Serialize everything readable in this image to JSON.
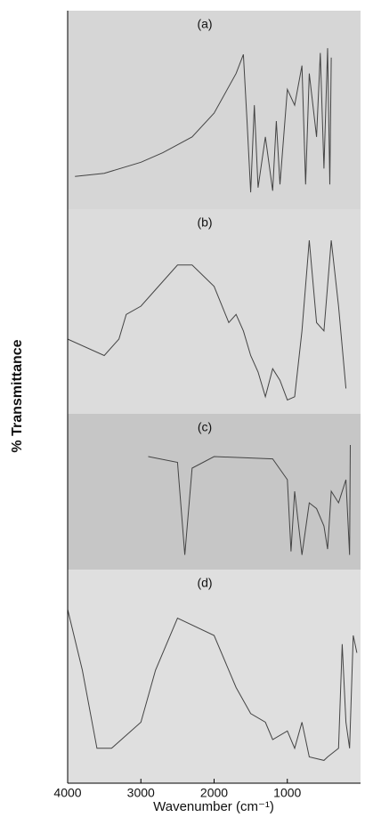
{
  "chart_data": {
    "type": "line",
    "ylabel": "% Transmittance",
    "xlabel": "Wavenumber (cm⁻¹)",
    "xlim": [
      4000,
      0
    ],
    "xticks": [
      4000,
      3000,
      2000,
      1000
    ],
    "color": "#444444",
    "panels": [
      {
        "label": "(a)",
        "background": "#d6d6d6",
        "ylim": [
          0,
          100
        ],
        "x": [
          3900,
          3500,
          3000,
          2700,
          2500,
          2300,
          2000,
          1700,
          1600,
          1550,
          1500,
          1450,
          1400,
          1300,
          1200,
          1150,
          1100,
          1000,
          900,
          800,
          750,
          700,
          600,
          550,
          500,
          450,
          420,
          400
        ],
        "values": [
          15,
          17,
          24,
          30,
          35,
          40,
          55,
          80,
          92,
          50,
          5,
          60,
          8,
          40,
          6,
          50,
          10,
          70,
          60,
          85,
          10,
          80,
          40,
          93,
          20,
          96,
          10,
          90
        ]
      },
      {
        "label": "(b)",
        "background": "#dcdcdc",
        "ylim": [
          0,
          100
        ],
        "x": [
          4000,
          3500,
          3300,
          3200,
          3000,
          2800,
          2500,
          2300,
          2000,
          1800,
          1700,
          1600,
          1500,
          1400,
          1300,
          1200,
          1100,
          1000,
          900,
          800,
          700,
          600,
          500,
          400,
          300,
          200
        ],
        "values": [
          40,
          30,
          40,
          55,
          60,
          70,
          85,
          85,
          72,
          50,
          55,
          45,
          30,
          20,
          5,
          22,
          15,
          3,
          5,
          45,
          100,
          50,
          45,
          100,
          60,
          10
        ]
      },
      {
        "label": "(c)",
        "background": "#c6c6c6",
        "ylim": [
          0,
          100
        ],
        "x": [
          2900,
          2500,
          2400,
          2300,
          2000,
          1200,
          1000,
          950,
          900,
          800,
          700,
          600,
          500,
          450,
          400,
          300,
          200,
          150,
          140
        ],
        "values": [
          90,
          85,
          5,
          80,
          90,
          88,
          70,
          8,
          60,
          5,
          50,
          45,
          30,
          10,
          60,
          50,
          70,
          5,
          100
        ]
      },
      {
        "label": "(d)",
        "background": "#dfdfdf",
        "ylim": [
          0,
          100
        ],
        "x": [
          4000,
          3800,
          3600,
          3400,
          3000,
          2800,
          2500,
          2000,
          1700,
          1500,
          1300,
          1200,
          1000,
          900,
          800,
          700,
          500,
          450,
          300,
          250,
          200,
          150,
          100,
          50
        ],
        "values": [
          95,
          60,
          15,
          15,
          30,
          60,
          90,
          80,
          50,
          35,
          30,
          20,
          25,
          15,
          30,
          10,
          8,
          10,
          15,
          75,
          30,
          15,
          80,
          70
        ]
      }
    ]
  }
}
